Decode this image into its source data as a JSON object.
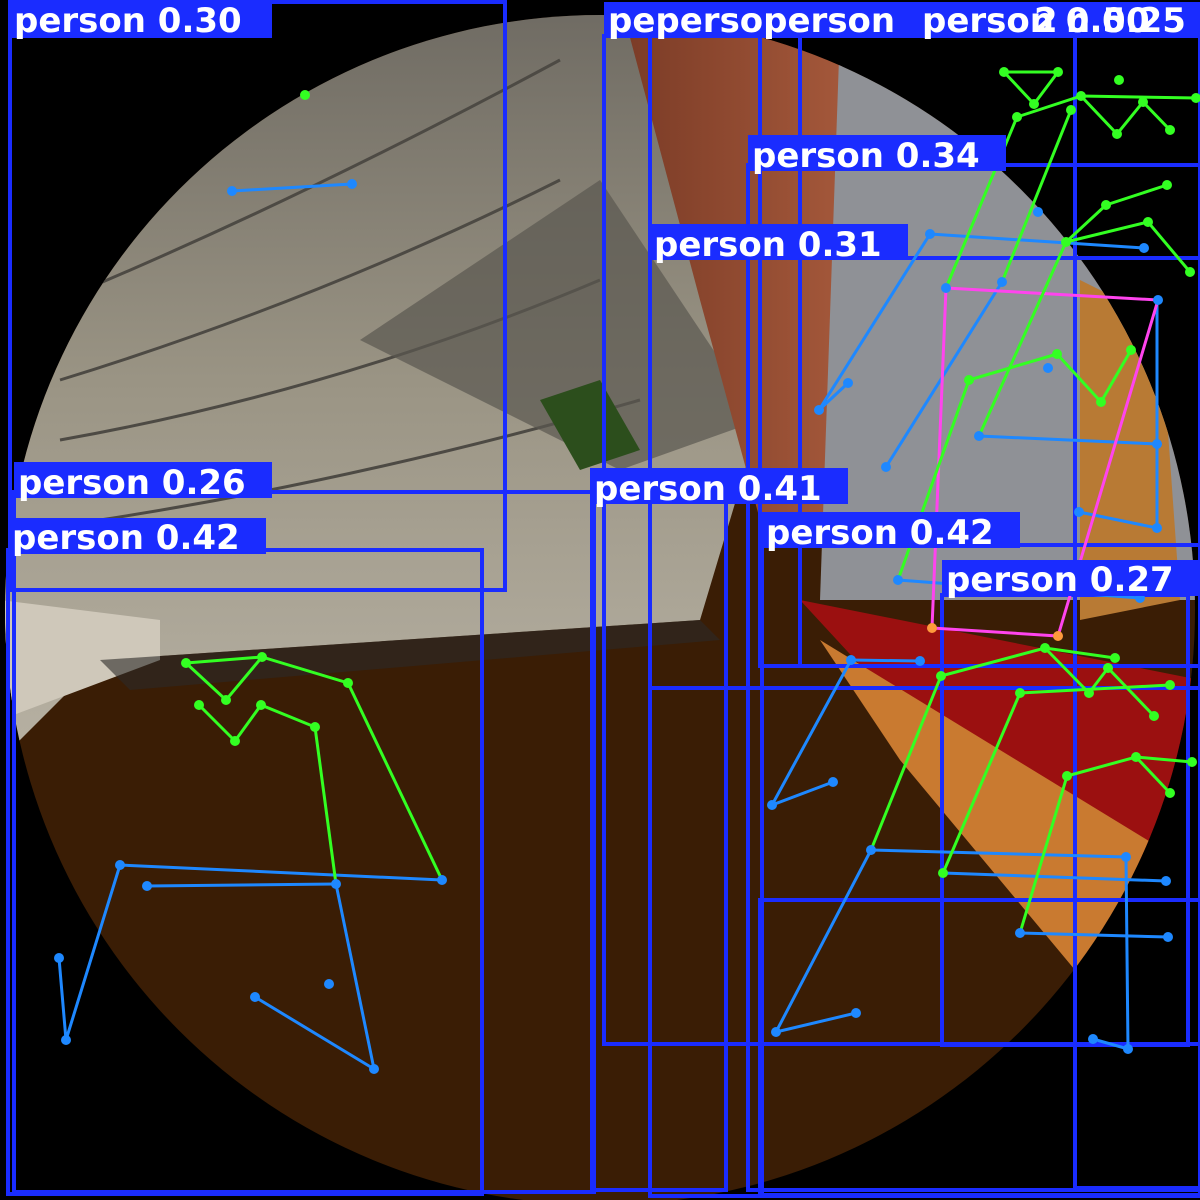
{
  "image": {
    "description_free": true,
    "colors": {
      "box": "#1a2cff",
      "label_bg": "#1a2cff",
      "label_text": "#ffffff",
      "skeleton_upper": "#33ff22",
      "skeleton_lower": "#1e88ff",
      "skeleton_torso": "#ff44ee",
      "keypoint_orange": "#ff9a3c",
      "floor": "#3a1d05",
      "ceiling": "#8d8576",
      "background": "#000000"
    }
  },
  "detections": [
    {
      "class": "person",
      "confidence": "0.30",
      "label": "person 0.30"
    },
    {
      "class": "person",
      "confidence": "0.26",
      "label": "person 0.26"
    },
    {
      "class": "person",
      "confidence": "0.42",
      "label": "person 0.42"
    },
    {
      "class": "person",
      "confidence": "0.34",
      "label": "person 0.34"
    },
    {
      "class": "person",
      "confidence": "0.31",
      "label": "person 0.31"
    },
    {
      "class": "person",
      "confidence": "0.41",
      "label": "person 0.41"
    },
    {
      "class": "person",
      "confidence": "0.42",
      "label": "person 0.42"
    },
    {
      "class": "person",
      "confidence": "0.27",
      "label": "person 0.27"
    },
    {
      "class": "person",
      "confidence": "0.25",
      "label": "n 0.25"
    },
    {
      "class": "person",
      "confidence": "0.50",
      "label": "person 0.50"
    },
    {
      "class": "person",
      "confidence": "0.52",
      "label": "2"
    },
    {
      "class": "person",
      "confidence": "",
      "label": "pepersoperson"
    }
  ]
}
